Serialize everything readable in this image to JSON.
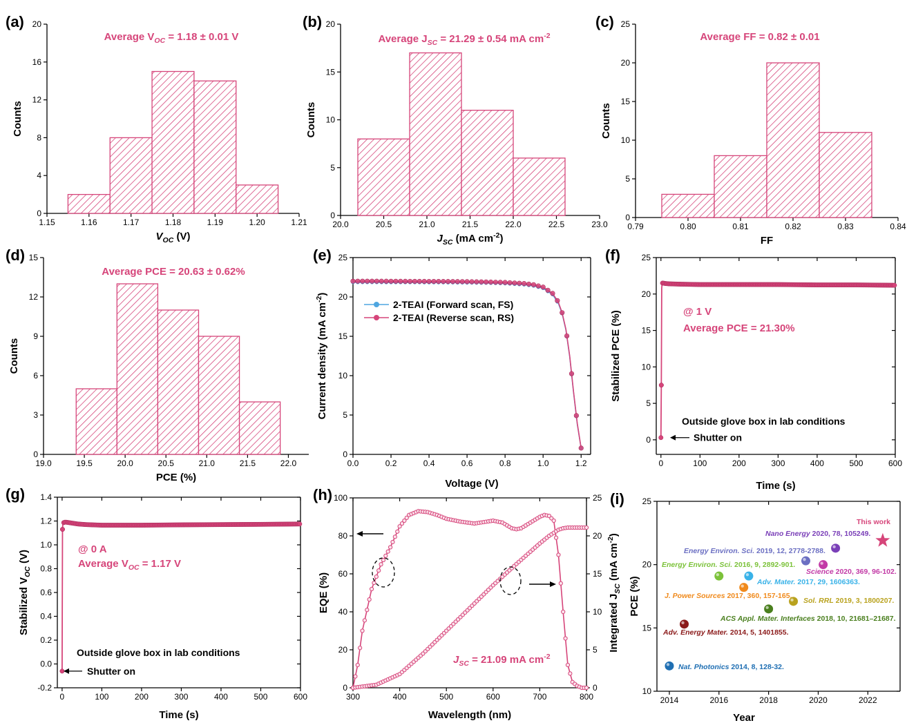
{
  "colors": {
    "main": "#d6457a",
    "fs": "#4fa6e0",
    "axis": "#000000",
    "star": "#d6457a"
  },
  "chart_data": [
    {
      "panel": "(a)",
      "type": "bar",
      "bin_edges": [
        1.155,
        1.165,
        1.175,
        1.185,
        1.195,
        1.205
      ],
      "values": [
        2,
        8,
        15,
        14,
        3
      ],
      "xlim": [
        1.15,
        1.21
      ],
      "ylim": [
        0,
        20
      ],
      "xticks": [
        "1.15",
        "1.16",
        "1.17",
        "1.18",
        "1.19",
        "1.20",
        "1.21"
      ],
      "yticks": [
        "0",
        "4",
        "8",
        "12",
        "16",
        "20"
      ],
      "xlabel": "V",
      "xlabel_sub": "OC",
      "xlabel_tail": " (V)",
      "ylabel": "Counts",
      "annotation": "Average V",
      "annotation_sub": "OC",
      "annotation_tail": " = 1.18 ± 0.01 V"
    },
    {
      "panel": "(b)",
      "type": "bar",
      "bin_edges": [
        20.2,
        20.8,
        21.4,
        22.0,
        22.6
      ],
      "values": [
        8,
        17,
        11,
        6
      ],
      "xlim": [
        20.0,
        23.0
      ],
      "ylim": [
        0,
        20
      ],
      "xticks": [
        "20.0",
        "20.5",
        "21.0",
        "21.5",
        "22.0",
        "22.5",
        "23.0"
      ],
      "yticks": [
        "0",
        "5",
        "10",
        "15",
        "20"
      ],
      "xlabel": "J",
      "xlabel_sub": "SC",
      "xlabel_tail": " (mA cm",
      "xlabel_sup": "-2",
      "xlabel_end": ")",
      "ylabel": "Counts",
      "annotation": "Average J",
      "annotation_sub": "SC",
      "annotation_tail": " = 21.29 ± 0.54 mA cm",
      "annotation_sup": "-2"
    },
    {
      "panel": "(c)",
      "type": "bar",
      "bin_edges": [
        0.795,
        0.805,
        0.815,
        0.825,
        0.835
      ],
      "values": [
        3,
        8,
        20,
        11
      ],
      "xlim": [
        0.79,
        0.84
      ],
      "ylim": [
        0,
        25
      ],
      "xticks": [
        "0.79",
        "0.80",
        "0.81",
        "0.82",
        "0.83",
        "0.84"
      ],
      "yticks": [
        "0",
        "5",
        "10",
        "15",
        "20",
        "25"
      ],
      "xlabel": "FF",
      "ylabel": "Counts",
      "annotation": "Average FF = 0.82 ± 0.01"
    },
    {
      "panel": "(d)",
      "type": "bar",
      "bin_edges": [
        19.4,
        19.9,
        20.4,
        20.9,
        21.4,
        21.9
      ],
      "values": [
        5,
        13,
        11,
        9,
        4
      ],
      "xlim": [
        19.0,
        22.25
      ],
      "ylim": [
        0,
        15
      ],
      "xticks": [
        "19.0",
        "19.5",
        "20.0",
        "20.5",
        "21.0",
        "21.5",
        "22.0"
      ],
      "yticks": [
        "0",
        "3",
        "6",
        "9",
        "12",
        "15"
      ],
      "xlabel": "PCE (%)",
      "ylabel": "Counts",
      "annotation": "Average PCE = 20.63 ± 0.62%"
    },
    {
      "panel": "(e)",
      "type": "line",
      "xlim": [
        0,
        1.25
      ],
      "ylim": [
        0,
        25
      ],
      "xticks": [
        "0.0",
        "0.2",
        "0.4",
        "0.6",
        "0.8",
        "1.0",
        "1.2"
      ],
      "yticks": [
        "0",
        "5",
        "10",
        "15",
        "20",
        "25"
      ],
      "xlabel": "Voltage (V)",
      "ylabel": "Current density (mA cm",
      "ylabel_sup": "-2",
      "ylabel_end": ")",
      "series": [
        {
          "name": "2-TEAI (Forward scan, FS)",
          "x": [
            0,
            0.1,
            0.2,
            0.3,
            0.4,
            0.5,
            0.6,
            0.7,
            0.8,
            0.9,
            0.95,
            1.0,
            1.05,
            1.08,
            1.1,
            1.12,
            1.14,
            1.16,
            1.18,
            1.2
          ],
          "y": [
            21.85,
            21.85,
            21.84,
            21.84,
            21.83,
            21.82,
            21.8,
            21.77,
            21.7,
            21.55,
            21.4,
            21.1,
            20.3,
            19.2,
            17.9,
            15.8,
            12.4,
            7.9,
            3.8,
            0.8
          ]
        },
        {
          "name": "2-TEAI (Reverse scan, RS)",
          "x": [
            0,
            0.1,
            0.2,
            0.3,
            0.4,
            0.5,
            0.6,
            0.7,
            0.8,
            0.9,
            0.95,
            1.0,
            1.05,
            1.08,
            1.1,
            1.12,
            1.14,
            1.16,
            1.18,
            1.2
          ],
          "y": [
            22.0,
            22.0,
            21.99,
            21.98,
            21.97,
            21.96,
            21.94,
            21.9,
            21.84,
            21.7,
            21.55,
            21.25,
            20.45,
            19.35,
            18.0,
            15.9,
            12.5,
            8.0,
            3.9,
            0.8
          ]
        }
      ]
    },
    {
      "panel": "(f)",
      "type": "line",
      "xlim": [
        -12,
        600
      ],
      "ylim": [
        -2,
        25
      ],
      "xticks": [
        "0",
        "100",
        "200",
        "300",
        "400",
        "500",
        "600"
      ],
      "yticks": [
        "0",
        "5",
        "10",
        "15",
        "20",
        "25"
      ],
      "xlabel": "Time (s)",
      "ylabel": "Stabilized PCE (%)",
      "series": [
        {
          "name": "",
          "x": [
            0,
            1,
            2,
            3,
            4,
            6,
            10,
            20,
            50,
            100,
            200,
            300,
            400,
            500,
            600
          ],
          "y": [
            0.3,
            7.5,
            20.8,
            21.4,
            21.5,
            21.5,
            21.45,
            21.4,
            21.35,
            21.3,
            21.3,
            21.3,
            21.25,
            21.25,
            21.2
          ]
        }
      ],
      "annotation_line1": "@ 1 V",
      "annotation_line2": "Average PCE = 21.30%",
      "note": "Outside glove box in lab conditions",
      "shutter": "Shutter on"
    },
    {
      "panel": "(g)",
      "type": "line",
      "xlim": [
        -12,
        600
      ],
      "ylim": [
        -0.2,
        1.4
      ],
      "xticks": [
        "0",
        "100",
        "200",
        "300",
        "400",
        "500",
        "600"
      ],
      "yticks": [
        "-0.2",
        "0.0",
        "0.2",
        "0.4",
        "0.6",
        "0.8",
        "1.0",
        "1.2",
        "1.4"
      ],
      "xlabel": "Time (s)",
      "ylabel": "Stabilized V",
      "ylabel_sub": "OC",
      "ylabel_tail": " (V)",
      "series": [
        {
          "name": "",
          "x": [
            0,
            1,
            2,
            5,
            10,
            20,
            40,
            60,
            100,
            200,
            300,
            400,
            500,
            600
          ],
          "y": [
            -0.06,
            1.13,
            1.18,
            1.19,
            1.19,
            1.185,
            1.175,
            1.17,
            1.165,
            1.165,
            1.168,
            1.17,
            1.172,
            1.175
          ]
        }
      ],
      "annotation_line1": "@ 0 A",
      "annotation_line2": "Average V",
      "annotation_sub": "OC",
      "annotation_tail": " = 1.17 V",
      "note": "Outside glove box in lab conditions",
      "shutter": "Shutter on"
    },
    {
      "panel": "(h)",
      "type": "line",
      "xlim": [
        300,
        800
      ],
      "ylim": [
        0,
        100
      ],
      "y2lim": [
        0,
        25
      ],
      "xticks": [
        "300",
        "400",
        "500",
        "600",
        "700",
        "800"
      ],
      "yticks": [
        "0",
        "20",
        "40",
        "60",
        "80",
        "100"
      ],
      "y2ticks": [
        "0",
        "5",
        "10",
        "15",
        "20",
        "25"
      ],
      "xlabel": "Wavelength (nm)",
      "ylabel": "EQE (%)",
      "y2label": "Integrated J",
      "y2label_sub": "SC",
      "y2label_tail": " (mA cm",
      "y2label_sup": "-2",
      "y2label_end": ")",
      "series": [
        {
          "name": "EQE",
          "x": [
            300,
            310,
            320,
            340,
            360,
            380,
            400,
            420,
            440,
            460,
            480,
            500,
            530,
            560,
            600,
            620,
            640,
            650,
            660,
            680,
            700,
            710,
            720,
            730,
            740,
            750,
            760,
            770,
            780,
            790,
            800
          ],
          "y": [
            0,
            12,
            30,
            52,
            65,
            74,
            85,
            91,
            93,
            92.5,
            91,
            89,
            87.5,
            86.5,
            88,
            87,
            84,
            83.5,
            84,
            87,
            90,
            91,
            90.5,
            88,
            70,
            40,
            12,
            3,
            1,
            0,
            0
          ]
        },
        {
          "name": "Integrated JSC",
          "x": [
            300,
            350,
            400,
            450,
            500,
            550,
            600,
            650,
            700,
            720,
            740,
            750,
            760,
            780,
            800
          ],
          "y": [
            0,
            0.4,
            1.8,
            4.5,
            7.5,
            10.5,
            13.5,
            16.3,
            19.0,
            20.0,
            20.8,
            21.0,
            21.09,
            21.09,
            21.09
          ]
        }
      ],
      "annotation": "J",
      "annotation_sub": "SC",
      "annotation_tail": " = 21.09 mA cm",
      "annotation_sup": "-2"
    },
    {
      "panel": "(i)",
      "type": "scatter",
      "xlim": [
        2013.5,
        2023.3
      ],
      "ylim": [
        10,
        25
      ],
      "xticks": [
        "2014",
        "2016",
        "2018",
        "2020",
        "2022"
      ],
      "yticks": [
        "10",
        "15",
        "20",
        "25"
      ],
      "xlabel": "Year",
      "ylabel": "PCE (%)",
      "points": [
        {
          "x": 2014.0,
          "y": 12.0,
          "label": "Nat. Photonics 2014, 8, 128-32.",
          "journal": "Nat. Photonics",
          "rest": " 2014, 8, 128-32.",
          "color": "#1f6fb3"
        },
        {
          "x": 2014.6,
          "y": 15.3,
          "label": "Adv. Energy Mater. 2014, 5, 1401855.",
          "journal": "Adv. Energy Mater.",
          "rest": " 2014, 5, 1401855.",
          "color": "#8b1a1a"
        },
        {
          "x": 2016.0,
          "y": 19.1,
          "label": "Energy Environ. Sci. 2016, 9, 2892-901.",
          "journal": "Energy Environ. Sci.",
          "rest": " 2016, 9, 2892-901.",
          "color": "#7cc23a"
        },
        {
          "x": 2017.0,
          "y": 18.2,
          "label": "J. Power Sources 2017, 360, 157-165.",
          "journal": "J. Power Sources",
          "rest": " 2017, 360, 157-165.",
          "color": "#f08a1c"
        },
        {
          "x": 2017.2,
          "y": 19.1,
          "label": "Adv. Mater. 2017, 29, 1606363.",
          "journal": "Adv. Mater.",
          "rest": " 2017, 29, 1606363.",
          "color": "#39b2e8"
        },
        {
          "x": 2018.0,
          "y": 16.5,
          "label": "ACS Appl. Mater. Interfaces 2018, 10, 21681–21687.",
          "journal": "ACS Appl. Mater. Interfaces",
          "rest": " 2018, 10, 21681–21687.",
          "color": "#4a7f1e"
        },
        {
          "x": 2019.0,
          "y": 17.1,
          "label": "Sol. RRL 2019, 3, 1800207.",
          "journal": "Sol. RRL",
          "rest": " 2019, 3, 1800207.",
          "color": "#b9a21e"
        },
        {
          "x": 2019.5,
          "y": 20.3,
          "label": "Energy Environ. Sci. 2019, 12, 2778-2788.",
          "journal": "Energy Environ. Sci.",
          "rest": " 2019, 12, 2778-2788.",
          "color": "#6b6fc2"
        },
        {
          "x": 2020.2,
          "y": 20.0,
          "label": "Science 2020, 369, 96-102.",
          "journal": "Science",
          "rest": " 2020, 369, 96-102.",
          "color": "#c23aa6"
        },
        {
          "x": 2020.7,
          "y": 21.3,
          "label": "Nano Energy 2020, 78, 105249.",
          "journal": "Nano Energy",
          "rest": " 2020, 78, 105249.",
          "color": "#7a3fb8"
        },
        {
          "x": 2022.6,
          "y": 21.9,
          "label": "This work",
          "journal": "",
          "rest": "",
          "color": "#d6457a"
        }
      ]
    }
  ]
}
